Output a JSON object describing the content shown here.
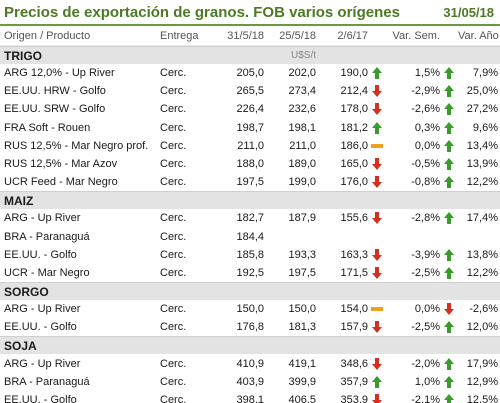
{
  "title": "Precios de exportación de granos. FOB varios orígenes",
  "date": "31/05/18",
  "headers": {
    "name": "Origen / Producto",
    "entrega": "Entrega",
    "c1": "31/5/18",
    "c2": "25/5/18",
    "c3": "2/6/17",
    "vs": "Var. Sem.",
    "va": "Var. Año"
  },
  "units": "U$S/t",
  "sections": [
    {
      "name": "TRIGO",
      "rows": [
        {
          "name": "ARG 12,0% - Up River",
          "ent": "Cerc.",
          "v1": "205,0",
          "v2": "202,0",
          "v3": "190,0",
          "i1": "up",
          "vs": "1,5%",
          "i2": "up",
          "va": "7,9%"
        },
        {
          "name": "EE.UU. HRW - Golfo",
          "ent": "Cerc.",
          "v1": "265,5",
          "v2": "273,4",
          "v3": "212,4",
          "i1": "down",
          "vs": "-2,9%",
          "i2": "up",
          "va": "25,0%"
        },
        {
          "name": "EE.UU. SRW - Golfo",
          "ent": "Cerc.",
          "v1": "226,4",
          "v2": "232,6",
          "v3": "178,0",
          "i1": "down",
          "vs": "-2,6%",
          "i2": "up",
          "va": "27,2%"
        },
        {
          "name": "FRA Soft - Rouen",
          "ent": "Cerc.",
          "v1": "198,7",
          "v2": "198,1",
          "v3": "181,2",
          "i1": "up",
          "vs": "0,3%",
          "i2": "up",
          "va": "9,6%"
        },
        {
          "name": "RUS 12,5% - Mar Negro prof.",
          "ent": "Cerc.",
          "v1": "211,0",
          "v2": "211,0",
          "v3": "186,0",
          "i1": "flat",
          "vs": "0,0%",
          "i2": "up",
          "va": "13,4%"
        },
        {
          "name": "RUS 12,5% - Mar Azov",
          "ent": "Cerc.",
          "v1": "188,0",
          "v2": "189,0",
          "v3": "165,0",
          "i1": "down",
          "vs": "-0,5%",
          "i2": "up",
          "va": "13,9%"
        },
        {
          "name": "UCR Feed - Mar Negro",
          "ent": "Cerc.",
          "v1": "197,5",
          "v2": "199,0",
          "v3": "176,0",
          "i1": "down",
          "vs": "-0,8%",
          "i2": "up",
          "va": "12,2%"
        }
      ]
    },
    {
      "name": "MAIZ",
      "rows": [
        {
          "name": "ARG - Up River",
          "ent": "Cerc.",
          "v1": "182,7",
          "v2": "187,9",
          "v3": "155,6",
          "i1": "down",
          "vs": "-2,8%",
          "i2": "up",
          "va": "17,4%"
        },
        {
          "name": "BRA - Paranaguá",
          "ent": "Cerc.",
          "v1": "184,4",
          "v2": "",
          "v3": "",
          "i1": "",
          "vs": "",
          "i2": "",
          "va": ""
        },
        {
          "name": "EE.UU. - Golfo",
          "ent": "Cerc.",
          "v1": "185,8",
          "v2": "193,3",
          "v3": "163,3",
          "i1": "down",
          "vs": "-3,9%",
          "i2": "up",
          "va": "13,8%"
        },
        {
          "name": "UCR - Mar Negro",
          "ent": "Cerc.",
          "v1": "192,5",
          "v2": "197,5",
          "v3": "171,5",
          "i1": "down",
          "vs": "-2,5%",
          "i2": "up",
          "va": "12,2%"
        }
      ]
    },
    {
      "name": "SORGO",
      "rows": [
        {
          "name": "ARG - Up River",
          "ent": "Cerc.",
          "v1": "150,0",
          "v2": "150,0",
          "v3": "154,0",
          "i1": "flat",
          "vs": "0,0%",
          "i2": "down",
          "va": "-2,6%"
        },
        {
          "name": "EE.UU. - Golfo",
          "ent": "Cerc.",
          "v1": "176,8",
          "v2": "181,3",
          "v3": "157,9",
          "i1": "down",
          "vs": "-2,5%",
          "i2": "up",
          "va": "12,0%"
        }
      ]
    },
    {
      "name": "SOJA",
      "rows": [
        {
          "name": "ARG - Up River",
          "ent": "Cerc.",
          "v1": "410,9",
          "v2": "419,1",
          "v3": "348,6",
          "i1": "down",
          "vs": "-2,0%",
          "i2": "up",
          "va": "17,9%"
        },
        {
          "name": "BRA - Paranaguá",
          "ent": "Cerc.",
          "v1": "403,9",
          "v2": "399,9",
          "v3": "357,9",
          "i1": "up",
          "vs": "1,0%",
          "i2": "up",
          "va": "12,9%"
        },
        {
          "name": "EE.UU. - Golfo",
          "ent": "Cerc.",
          "v1": "398,1",
          "v2": "406,5",
          "v3": "353,9",
          "i1": "down",
          "vs": "-2,1%",
          "i2": "up",
          "va": "12,5%"
        }
      ]
    }
  ]
}
